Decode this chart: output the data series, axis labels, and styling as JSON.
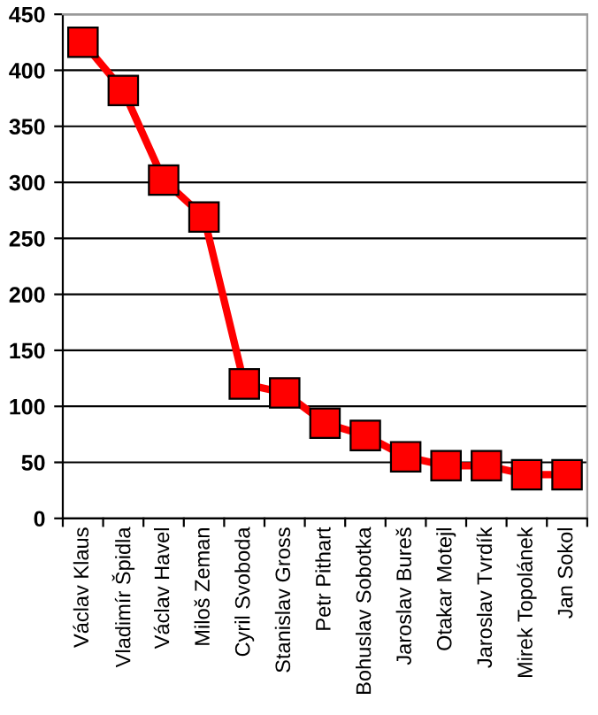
{
  "chart_data": {
    "type": "line",
    "categories": [
      "Václav Klaus",
      "Vladimír Špidla",
      "Václav Havel",
      "Miloš Zeman",
      "Cyril Svoboda",
      "Stanislav Gross",
      "Petr Pithart",
      "Bohuslav Sobotka",
      "Jaroslav Bureš",
      "Otakar Motejl",
      "Jaroslav Tvrdík",
      "Mirek Topolánek",
      "Jan Sokol"
    ],
    "series": [
      {
        "color": "#ff0000",
        "values": [
          425,
          382,
          302,
          269,
          120,
          112,
          85,
          74,
          55,
          47,
          47,
          39,
          39
        ]
      }
    ],
    "ylim": [
      0,
      450
    ],
    "yticks": [
      0,
      50,
      100,
      150,
      200,
      250,
      300,
      350,
      400,
      450
    ],
    "grid": "y",
    "marker": "square",
    "line_style": "solid",
    "legend": false
  }
}
